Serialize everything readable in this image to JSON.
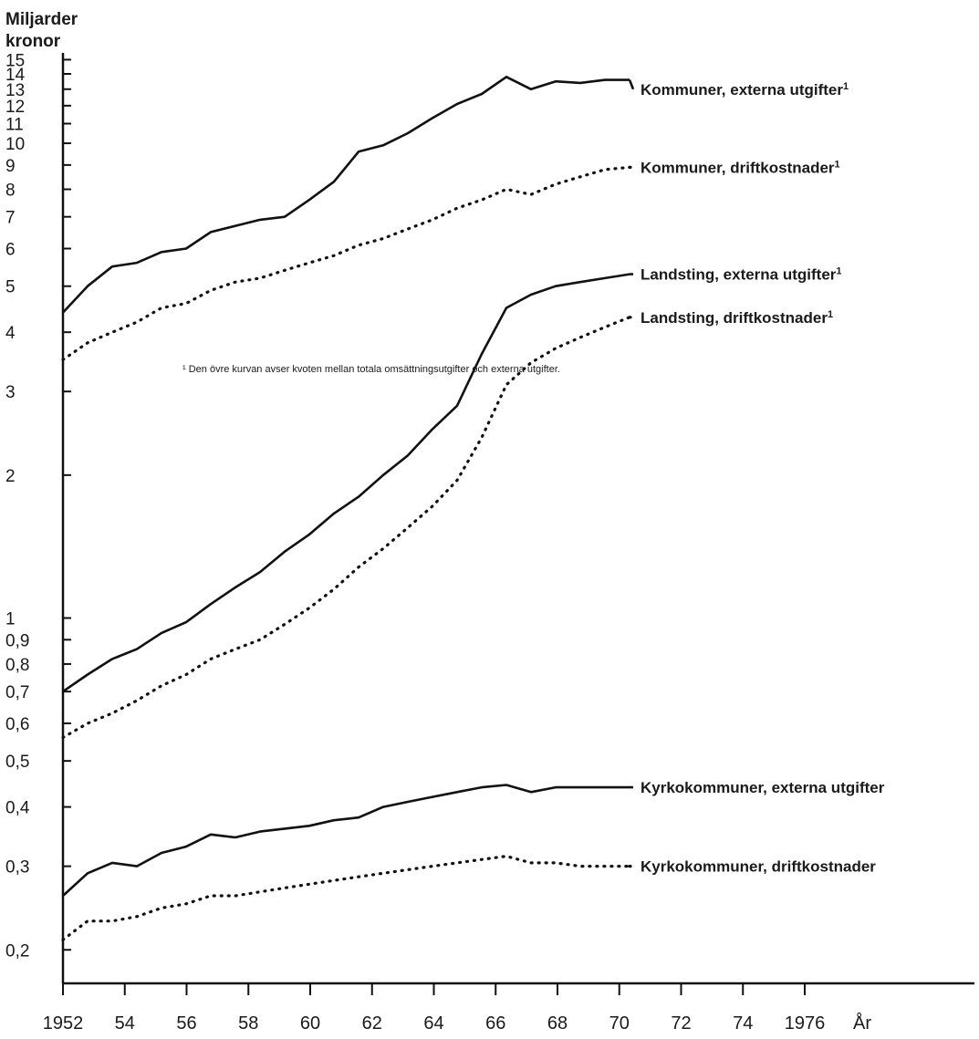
{
  "chart_data": {
    "type": "line",
    "title": "Miljarder kronor",
    "xlabel": "År",
    "y_scale": "log",
    "ylim": [
      0.17,
      15.5
    ],
    "xlim": [
      1952,
      1976
    ],
    "x_ticks": [
      {
        "value": 1952,
        "label": "1952"
      },
      {
        "value": 1954,
        "label": "54"
      },
      {
        "value": 1956,
        "label": "56"
      },
      {
        "value": 1958,
        "label": "58"
      },
      {
        "value": 1960,
        "label": "60"
      },
      {
        "value": 1962,
        "label": "62"
      },
      {
        "value": 1964,
        "label": "64"
      },
      {
        "value": 1966,
        "label": "66"
      },
      {
        "value": 1968,
        "label": "68"
      },
      {
        "value": 1970,
        "label": "70"
      },
      {
        "value": 1972,
        "label": "72"
      },
      {
        "value": 1974,
        "label": "74"
      },
      {
        "value": 1976,
        "label": "1976"
      }
    ],
    "y_ticks": [
      {
        "value": 15,
        "label": "15"
      },
      {
        "value": 14,
        "label": "14"
      },
      {
        "value": 13,
        "label": "13"
      },
      {
        "value": 12,
        "label": "12"
      },
      {
        "value": 11,
        "label": "11"
      },
      {
        "value": 10,
        "label": "10"
      },
      {
        "value": 9,
        "label": "9"
      },
      {
        "value": 8,
        "label": "8"
      },
      {
        "value": 7,
        "label": "7"
      },
      {
        "value": 6,
        "label": "6"
      },
      {
        "value": 5,
        "label": "5"
      },
      {
        "value": 4,
        "label": "4"
      },
      {
        "value": 3,
        "label": "3"
      },
      {
        "value": 2,
        "label": "2"
      },
      {
        "value": 1,
        "label": "1"
      },
      {
        "value": 0.9,
        "label": "0,9"
      },
      {
        "value": 0.8,
        "label": "0,8"
      },
      {
        "value": 0.7,
        "label": "0,7"
      },
      {
        "value": 0.6,
        "label": "0,6"
      },
      {
        "value": 0.5,
        "label": "0,5"
      },
      {
        "value": 0.4,
        "label": "0,4"
      },
      {
        "value": 0.3,
        "label": "0,3"
      },
      {
        "value": 0.2,
        "label": "0,2"
      }
    ],
    "x": [
      1952,
      1953,
      1954,
      1955,
      1956,
      1957,
      1958,
      1959,
      1960,
      1961,
      1962,
      1963,
      1964,
      1965,
      1966,
      1967,
      1968,
      1969,
      1970,
      1971,
      1972,
      1973,
      1974,
      1975
    ],
    "series": [
      {
        "name": "Kommuner, externa utgifter",
        "superscript": "1",
        "style": "solid",
        "label_at": 13.0,
        "values": [
          4.4,
          5.0,
          5.5,
          5.6,
          5.9,
          6.0,
          6.5,
          6.7,
          6.9,
          7.0,
          7.6,
          8.3,
          9.6,
          9.9,
          10.5,
          11.3,
          12.1,
          12.7,
          13.8,
          13.0,
          13.5,
          13.4,
          13.6,
          13.6
        ]
      },
      {
        "name": "Kommuner, driftkostnader",
        "superscript": "1",
        "style": "dotted",
        "label_at": 8.9,
        "values": [
          3.5,
          3.8,
          4.0,
          4.2,
          4.5,
          4.6,
          4.9,
          5.1,
          5.2,
          5.4,
          5.6,
          5.8,
          6.1,
          6.3,
          6.6,
          6.9,
          7.3,
          7.6,
          8.0,
          7.8,
          8.2,
          8.5,
          8.8,
          8.9
        ]
      },
      {
        "name": "Landsting, externa utgifter",
        "superscript": "1",
        "style": "solid",
        "label_at": 5.3,
        "values": [
          0.7,
          0.76,
          0.82,
          0.86,
          0.93,
          0.98,
          1.07,
          1.16,
          1.25,
          1.38,
          1.5,
          1.66,
          1.8,
          2.0,
          2.2,
          2.5,
          2.8,
          3.6,
          4.5,
          4.8,
          5.0,
          5.1,
          5.2,
          5.3
        ]
      },
      {
        "name": "Landsting, driftkostnader",
        "superscript": "1",
        "style": "dotted",
        "label_at": 4.3,
        "values": [
          0.56,
          0.6,
          0.63,
          0.67,
          0.72,
          0.76,
          0.82,
          0.86,
          0.9,
          0.97,
          1.05,
          1.15,
          1.28,
          1.4,
          1.55,
          1.72,
          1.95,
          2.4,
          3.1,
          3.45,
          3.7,
          3.9,
          4.1,
          4.3
        ]
      },
      {
        "name": "Kyrkokommuner, externa utgifter",
        "style": "solid",
        "label_at": 0.44,
        "values": [
          0.26,
          0.29,
          0.305,
          0.3,
          0.32,
          0.33,
          0.35,
          0.345,
          0.355,
          0.36,
          0.365,
          0.375,
          0.38,
          0.4,
          0.41,
          0.42,
          0.43,
          0.44,
          0.445,
          0.43,
          0.44,
          0.44,
          0.44,
          0.44
        ]
      },
      {
        "name": "Kyrkokommuner, driftkostnader",
        "style": "dotted",
        "label_at": 0.3,
        "values": [
          0.21,
          0.23,
          0.23,
          0.235,
          0.245,
          0.25,
          0.26,
          0.26,
          0.265,
          0.27,
          0.275,
          0.28,
          0.285,
          0.29,
          0.295,
          0.3,
          0.305,
          0.31,
          0.315,
          0.305,
          0.305,
          0.3,
          0.3,
          0.3
        ]
      }
    ],
    "footnote": "¹ Den övre kurvan avser kvoten mellan totala omsättningsutgifter och externa utgifter."
  }
}
